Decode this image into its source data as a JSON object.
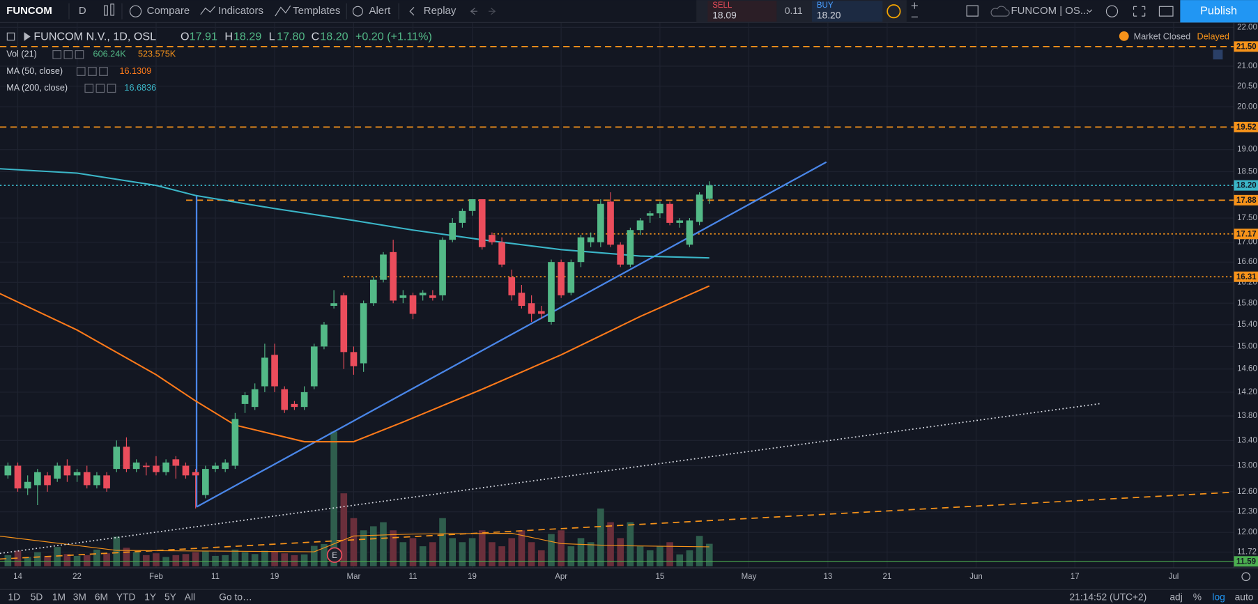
{
  "toolbar": {
    "symbol": "FUNCOM",
    "interval": "D",
    "compare": "Compare",
    "indicators": "Indicators",
    "templates": "Templates",
    "alert": "Alert",
    "replay": "Replay",
    "sell_label": "SELL",
    "sell_price": "18.09",
    "spread": "0.11",
    "buy_label": "BUY",
    "buy_price": "18.20",
    "layout": "FUNCOM | OS...",
    "publish": "Publish"
  },
  "legend": {
    "title": "FUNCOM N.V., 1D, OSL",
    "open_label": "O",
    "open": "17.91",
    "high_label": "H",
    "high": "18.29",
    "low_label": "L",
    "low": "17.80",
    "close_label": "C",
    "close": "18.20",
    "change": "+0.20 (+1.11%)",
    "vol_name": "Vol (21)",
    "vol_value": "606.24K",
    "vol_ma_value": "523.575K",
    "ma50_name": "MA (50, close)",
    "ma50_value": "16.1309",
    "ma200_name": "MA (200, close)",
    "ma200_value": "16.6836",
    "market": "Market Closed",
    "delayed": "Delayed"
  },
  "bottom": {
    "ranges": [
      "1D",
      "5D",
      "1M",
      "3M",
      "6M",
      "YTD",
      "1Y",
      "5Y",
      "All"
    ],
    "goto": "Go to…",
    "clock": "21:14:52 (UTC+2)",
    "adj": "adj",
    "percent": "%",
    "log": "log",
    "auto": "auto"
  },
  "earnings_marker": "E",
  "chart_data": {
    "type": "candlestick",
    "log": true,
    "grid": true,
    "up_color": "#53b987",
    "down_color": "#eb4d5c",
    "ylim": [
      11.5,
      22.13
    ],
    "yticks": [
      {
        "value": 22,
        "label": "22.00"
      },
      {
        "value": 21,
        "label": "21.00"
      },
      {
        "value": 20.5,
        "label": "20.50"
      },
      {
        "value": 20,
        "label": "20.00"
      },
      {
        "value": 19,
        "label": "19.00"
      },
      {
        "value": 18.5,
        "label": "18.50"
      },
      {
        "value": 17.5,
        "label": "17.50"
      },
      {
        "value": 17,
        "label": "17.00"
      },
      {
        "value": 16.6,
        "label": "16.60"
      },
      {
        "value": 16.2,
        "label": "16.20"
      },
      {
        "value": 15.8,
        "label": "15.80"
      },
      {
        "value": 15.4,
        "label": "15.40"
      },
      {
        "value": 15,
        "label": "15.00"
      },
      {
        "value": 14.6,
        "label": "14.60"
      },
      {
        "value": 14.2,
        "label": "14.20"
      },
      {
        "value": 13.8,
        "label": "13.80"
      },
      {
        "value": 13.4,
        "label": "13.40"
      },
      {
        "value": 13,
        "label": "13.00"
      },
      {
        "value": 12.6,
        "label": "12.60"
      },
      {
        "value": 12.3,
        "label": "12.30"
      },
      {
        "value": 12,
        "label": "12.00"
      },
      {
        "value": 11.72,
        "label": "11.72"
      }
    ],
    "xlim": [
      -0.8,
      124.1
    ],
    "xticks": [
      {
        "value": 1,
        "label": "14"
      },
      {
        "value": 7,
        "label": "22"
      },
      {
        "value": 15,
        "label": "Feb"
      },
      {
        "value": 21,
        "label": "11"
      },
      {
        "value": 27,
        "label": "19"
      },
      {
        "value": 35,
        "label": "Mar"
      },
      {
        "value": 41,
        "label": "11"
      },
      {
        "value": 47,
        "label": "19"
      },
      {
        "value": 56,
        "label": "Apr"
      },
      {
        "value": 66,
        "label": "15"
      },
      {
        "value": 75,
        "label": "May"
      },
      {
        "value": 83,
        "label": "13"
      },
      {
        "value": 89,
        "label": "21"
      },
      {
        "value": 98,
        "label": "Jun"
      },
      {
        "value": 108,
        "label": "17"
      },
      {
        "value": 118,
        "label": "Jul"
      }
    ],
    "open": [
      12.85,
      13.0,
      12.65,
      12.7,
      12.85,
      12.8,
      13.0,
      12.85,
      12.9,
      12.7,
      12.85,
      12.95,
      13.3,
      12.95,
      13.0,
      13.0,
      12.9,
      13.1,
      13.0,
      12.9,
      12.55,
      12.95,
      12.95,
      13.0,
      14.0,
      13.95,
      14.3,
      14.85,
      14.25,
      14.0,
      13.95,
      14.3,
      15.0,
      15.75,
      15.95,
      14.9,
      14.7,
      15.8,
      16.25,
      16.8,
      15.9,
      15.95,
      15.95,
      15.95,
      15.95,
      17.05,
      17.4,
      17.65,
      17.9,
      17.15,
      17.0,
      16.3,
      16.0,
      15.8,
      15.65,
      15.45,
      16.6,
      16.0,
      16.6,
      17.0,
      17.0,
      17.85,
      16.95,
      16.55,
      17.25,
      17.55,
      17.6,
      17.8,
      17.4,
      16.95,
      17.42,
      17.91
    ],
    "high": [
      13.05,
      13.05,
      12.85,
      12.95,
      12.9,
      13.05,
      13.1,
      12.95,
      13.0,
      12.9,
      12.9,
      13.4,
      13.45,
      13.1,
      13.05,
      13.15,
      13.1,
      13.15,
      13.05,
      12.95,
      13.0,
      13.05,
      13.1,
      13.85,
      14.2,
      14.35,
      15.05,
      15.05,
      14.3,
      14.05,
      14.3,
      15.05,
      15.45,
      16.05,
      16.0,
      15.0,
      15.85,
      16.3,
      16.8,
      17.05,
      16.05,
      16.0,
      16.05,
      16.05,
      17.1,
      17.5,
      17.7,
      17.9,
      17.9,
      17.2,
      17.1,
      16.45,
      16.15,
      15.95,
      15.75,
      16.65,
      16.65,
      16.65,
      17.15,
      17.2,
      17.9,
      18.05,
      17.0,
      17.3,
      17.5,
      17.65,
      17.85,
      17.85,
      17.5,
      17.5,
      18.05,
      18.29
    ],
    "low": [
      12.8,
      12.6,
      12.55,
      12.4,
      12.6,
      12.75,
      12.75,
      12.75,
      12.65,
      12.65,
      12.6,
      12.9,
      12.9,
      12.9,
      12.85,
      12.85,
      12.85,
      12.8,
      12.8,
      12.35,
      12.5,
      12.9,
      12.9,
      12.95,
      13.85,
      13.9,
      14.2,
      14.2,
      13.85,
      13.9,
      13.9,
      14.25,
      14.95,
      15.7,
      14.6,
      14.5,
      14.55,
      15.75,
      16.2,
      15.8,
      15.8,
      15.5,
      15.85,
      15.85,
      15.85,
      17.0,
      17.3,
      17.55,
      16.85,
      16.95,
      16.5,
      15.85,
      15.7,
      15.45,
      15.5,
      15.4,
      15.9,
      15.95,
      16.5,
      16.9,
      16.9,
      16.9,
      16.5,
      16.5,
      17.15,
      17.4,
      17.5,
      17.35,
      17.3,
      16.9,
      17.35,
      17.8
    ],
    "close": [
      13.0,
      12.65,
      12.75,
      12.9,
      12.7,
      13.0,
      12.85,
      12.9,
      12.7,
      12.85,
      12.65,
      13.3,
      12.95,
      13.05,
      12.98,
      12.9,
      13.05,
      13.0,
      12.85,
      12.85,
      12.95,
      13.0,
      13.05,
      13.75,
      14.15,
      14.25,
      14.8,
      14.3,
      13.9,
      13.95,
      14.2,
      15.0,
      15.4,
      15.8,
      14.9,
      14.65,
      15.8,
      16.25,
      16.75,
      15.85,
      15.95,
      15.6,
      16.0,
      15.9,
      17.05,
      17.4,
      17.65,
      17.9,
      16.9,
      17.0,
      16.55,
      15.95,
      15.75,
      15.6,
      15.6,
      16.6,
      15.95,
      16.6,
      17.1,
      17.1,
      17.8,
      16.95,
      16.55,
      17.25,
      17.45,
      17.6,
      17.8,
      17.4,
      17.45,
      17.45,
      18.0,
      18.2
    ],
    "volume": [
      300,
      420,
      250,
      380,
      280,
      520,
      330,
      280,
      300,
      450,
      350,
      800,
      500,
      380,
      300,
      350,
      250,
      300,
      330,
      380,
      400,
      280,
      300,
      450,
      380,
      330,
      420,
      400,
      350,
      300,
      320,
      550,
      600,
      3640,
      1970,
      1300,
      970,
      1080,
      1190,
      970,
      650,
      760,
      540,
      650,
      1300,
      760,
      650,
      760,
      970,
      650,
      540,
      760,
      970,
      650,
      430,
      870,
      970,
      540,
      760,
      650,
      1560,
      1190,
      760,
      1190,
      540,
      430,
      540,
      650,
      320,
      430,
      820,
      606.24
    ],
    "vol_ma": {
      "color": "#f7931a",
      "x": [
        -1,
        11,
        31,
        35,
        41,
        51,
        56,
        61,
        71
      ],
      "values": [
        820,
        430,
        390,
        820,
        870,
        890,
        610,
        560,
        523.575
      ]
    },
    "ma50": {
      "color": "#ff7a1a",
      "x": [
        -1,
        7,
        15,
        19,
        23,
        30,
        35,
        40,
        48,
        56,
        64,
        71
      ],
      "values": [
        16.0,
        15.3,
        14.5,
        14.05,
        13.65,
        13.38,
        13.38,
        13.7,
        14.25,
        14.85,
        15.55,
        16.1309
      ]
    },
    "ma200": {
      "color": "#3bb6c8",
      "x": [
        -1,
        7,
        15,
        19,
        27,
        35,
        41,
        48,
        56,
        64,
        71
      ],
      "values": [
        18.57,
        18.47,
        18.2,
        17.98,
        17.7,
        17.45,
        17.25,
        17.05,
        16.85,
        16.72,
        16.6836
      ]
    },
    "hlines": [
      {
        "value": 21.5,
        "label": "21.50",
        "color": "#f7931a",
        "style": "dashed"
      },
      {
        "value": 19.52,
        "label": "19.52",
        "color": "#f7931a",
        "style": "dashed"
      },
      {
        "value": 18.2,
        "label": "18.20",
        "color": "#3bb6c8",
        "style": "dotted"
      },
      {
        "value": 17.88,
        "label": "17.88",
        "color": "#f7931a",
        "style": "dashed"
      },
      {
        "value": 17.17,
        "label": "17.17",
        "color": "#f7931a",
        "style": "dotted"
      },
      {
        "value": 16.31,
        "label": "16.31",
        "color": "#f7931a",
        "style": "dotted"
      },
      {
        "value": 11.59,
        "label": "11.59",
        "color": "#4caf50",
        "style": "solid"
      }
    ]
  }
}
